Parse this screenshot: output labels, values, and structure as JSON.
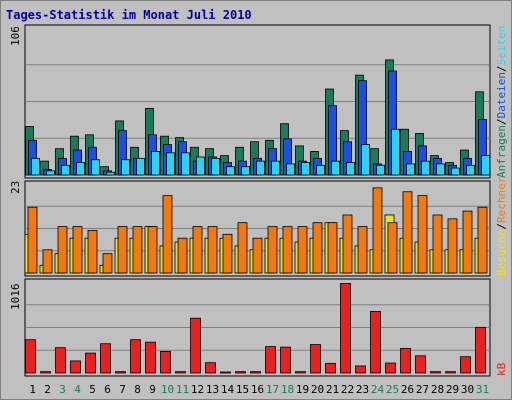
{
  "title": "Tages-Statistik im Monat Juli 2010",
  "colors": {
    "frame_bg": "#c0c0c0",
    "panel_bg": "#c0c0c0",
    "title": "#0000a0",
    "anfragen": "#1a7a5a",
    "dateien": "#1c4fe0",
    "seiten": "#2ad4f0",
    "besuche": "#f0e020",
    "rechner": "#f07a10",
    "kb": "#e82020",
    "weekend_label": "#1a7a5a",
    "weekday_label": "#000000"
  },
  "legend": {
    "top": [
      {
        "text": "Anfragen",
        "color": "#1a7a5a"
      },
      {
        "text": "/",
        "color": "#000000"
      },
      {
        "text": "Dateien",
        "color": "#1c4fe0"
      },
      {
        "text": "/",
        "color": "#000000"
      },
      {
        "text": "Seiten",
        "color": "#2ad4f0"
      }
    ],
    "middle": [
      {
        "text": "Besuche",
        "color": "#f0e020"
      },
      {
        "text": "/",
        "color": "#000000"
      },
      {
        "text": "Rechner",
        "color": "#f07a10"
      }
    ],
    "bottom": [
      {
        "text": "kB",
        "color": "#e82020"
      }
    ]
  },
  "chart_data": {
    "type": "bar",
    "categories": [
      "1",
      "2",
      "3",
      "4",
      "5",
      "6",
      "7",
      "8",
      "9",
      "10",
      "11",
      "12",
      "13",
      "14",
      "15",
      "16",
      "17",
      "18",
      "19",
      "20",
      "21",
      "22",
      "23",
      "24",
      "25",
      "26",
      "27",
      "28",
      "29",
      "30",
      "31"
    ],
    "weekend_days": [
      3,
      4,
      10,
      11,
      17,
      18,
      24,
      25,
      31
    ],
    "panels": [
      {
        "name": "hits",
        "max_label": "106",
        "ymax": 106,
        "series": [
          {
            "name": "Anfragen",
            "values": [
              35,
              10,
              19,
              28,
              29,
              6,
              39,
              20,
              48,
              28,
              27,
              20,
              19,
              14,
              20,
              24,
              25,
              37,
              21,
              17,
              62,
              32,
              72,
              19,
              83,
              33,
              30,
              14,
              9,
              18,
              60
            ]
          },
          {
            "name": "Dateien",
            "values": [
              25,
              4,
              12,
              18,
              20,
              3,
              32,
              12,
              29,
              22,
              24,
              10,
              13,
              9,
              10,
              12,
              19,
              26,
              10,
              12,
              50,
              24,
              68,
              8,
              75,
              17,
              21,
              12,
              7,
              12,
              40
            ]
          },
          {
            "name": "Seiten",
            "values": [
              12,
              3,
              7,
              9,
              11,
              2,
              11,
              12,
              17,
              16,
              16,
              13,
              12,
              6,
              6,
              10,
              10,
              8,
              9,
              7,
              10,
              9,
              22,
              7,
              33,
              8,
              10,
              8,
              5,
              7,
              14
            ]
          }
        ]
      },
      {
        "name": "visits",
        "max_label": "23",
        "ymax": 23,
        "series": [
          {
            "name": "Besuche",
            "values": [
              10,
              2,
              5,
              9,
              9,
              2,
              9,
              9,
              12,
              7,
              8,
              9,
              9,
              9,
              7,
              6,
              9,
              9,
              8,
              9,
              13,
              9,
              7,
              6,
              15,
              9,
              8,
              6,
              6,
              6,
              9
            ]
          },
          {
            "name": "Rechner",
            "values": [
              17,
              6,
              12,
              12,
              11,
              5,
              12,
              12,
              12,
              20,
              9,
              12,
              12,
              10,
              13,
              9,
              12,
              12,
              12,
              13,
              13,
              15,
              12,
              22,
              13,
              21,
              20,
              15,
              14,
              16,
              17
            ]
          }
        ]
      },
      {
        "name": "volume",
        "max_label": "1016",
        "ymax": 1016,
        "series": [
          {
            "name": "kB",
            "values": [
              372,
              15,
              283,
              135,
              222,
              327,
              15,
              372,
              344,
              241,
              15,
              612,
              115,
              10,
              15,
              15,
              295,
              289,
              15,
              318,
              108,
              1000,
              79,
              688,
              111,
              275,
              192,
              15,
              15,
              182,
              510
            ]
          }
        ]
      }
    ]
  }
}
